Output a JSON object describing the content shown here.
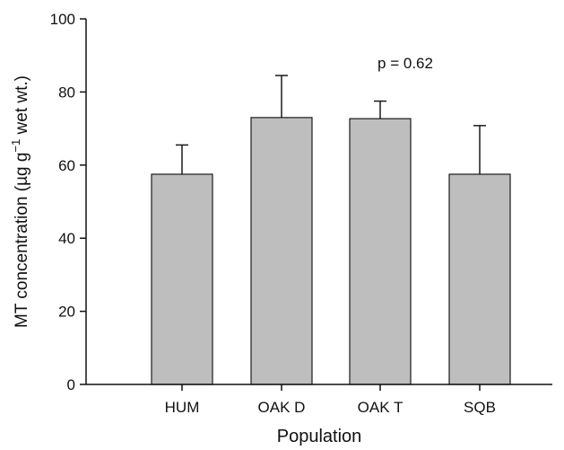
{
  "chart_data": {
    "type": "bar",
    "categories": [
      "HUM",
      "OAK D",
      "OAK T",
      "SQB"
    ],
    "values": [
      57.5,
      73,
      72.7,
      57.5
    ],
    "error_upper": [
      65.5,
      84.5,
      77.5,
      70.8
    ],
    "xlabel": "Population",
    "ylabel_prefix": "MT concentration (µg g",
    "ylabel_superscript": "−1",
    "ylabel_suffix": " wet wt.)",
    "ylim": [
      0,
      100
    ],
    "yticks": [
      0,
      20,
      40,
      60,
      80,
      100
    ],
    "annotation": "p = 0.62",
    "grid": false,
    "bar_color": "#bebebe",
    "edge_color": "#1a1a1a"
  }
}
